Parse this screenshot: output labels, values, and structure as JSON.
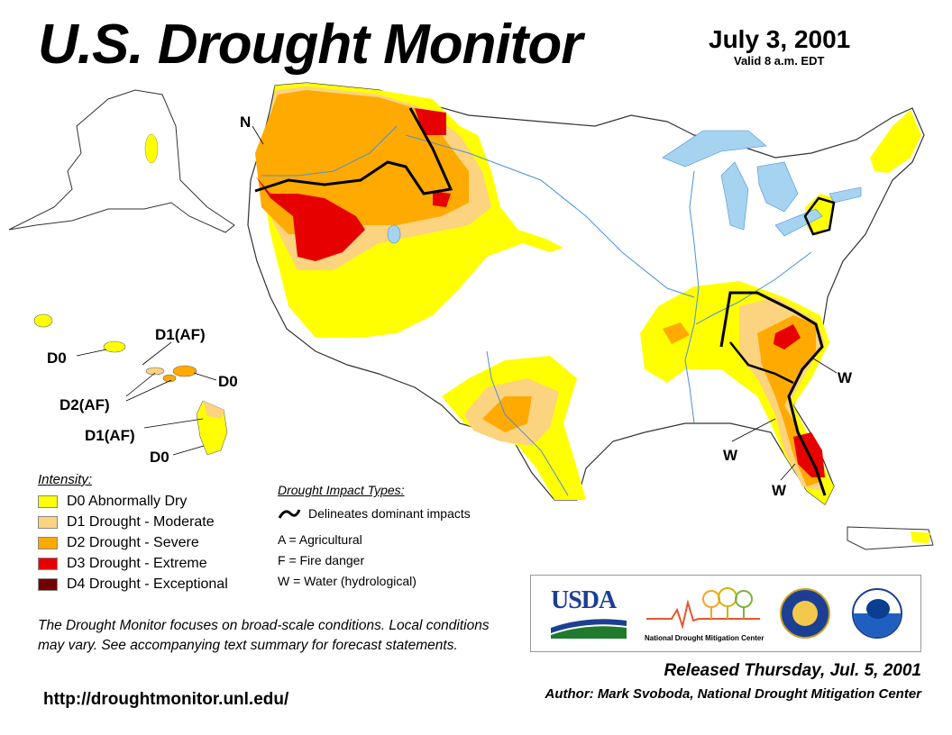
{
  "header": {
    "title": "U.S. Drought Monitor",
    "date": "July 3, 2001",
    "valid": "Valid 8 a.m. EDT"
  },
  "map_labels": {
    "N": "N",
    "W_southeast": "W",
    "W_southwest": "W",
    "W_florida": "W",
    "hi_D0_1": "D0",
    "hi_D1AF_1": "D1(AF)",
    "hi_D0_2": "D0",
    "hi_D2AF": "D2(AF)",
    "hi_D1AF_2": "D1(AF)",
    "hi_D0_3": "D0"
  },
  "legend": {
    "intensity_title": "Intensity:",
    "items": [
      {
        "label": "D0 Abnormally Dry",
        "color": "#ffff00"
      },
      {
        "label": "D1 Drought - Moderate",
        "color": "#fcd37f"
      },
      {
        "label": "D2 Drought - Severe",
        "color": "#ffaa00"
      },
      {
        "label": "D3 Drought - Extreme",
        "color": "#e60000"
      },
      {
        "label": "D4 Drought - Exceptional",
        "color": "#730000"
      }
    ],
    "impact_title": "Drought Impact Types:",
    "impact_line": "Delineates dominant impacts",
    "impact_types": [
      "A = Agricultural",
      "F = Fire danger",
      "W = Water (hydrological)"
    ]
  },
  "note": "The Drought Monitor focuses on broad-scale conditions. Local conditions may vary. See accompanying text summary for forecast statements.",
  "url": "http://droughtmonitor.unl.edu/",
  "logos": {
    "usda": "USDA",
    "ndmc": "National Drought Mitigation Center"
  },
  "footer": {
    "released": "Released Thursday, Jul. 5, 2001",
    "author": "Author: Mark Svoboda, National Drought Mitigation Center"
  },
  "colors": {
    "d0": "#ffff00",
    "d1": "#fcd37f",
    "d2": "#ffaa00",
    "d3": "#e60000",
    "d4": "#730000",
    "water": "#a5d3f0",
    "rivers": "#4a90d9"
  }
}
